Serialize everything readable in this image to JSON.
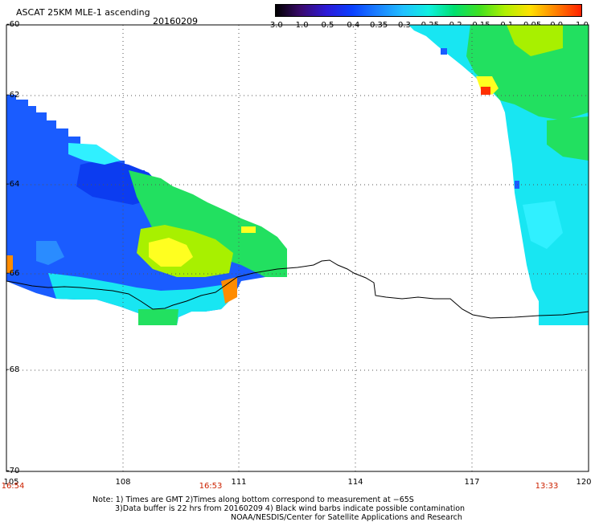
{
  "header": {
    "title": "ASCAT 25KM MLE-1 ascending",
    "date": "20160209"
  },
  "colorbar": {
    "labels": [
      "-3.0",
      "-1.0",
      "-0.5",
      "-0.4",
      "-0.35",
      "-0.3",
      "-0.25",
      "-0.2",
      "-0.15",
      "-0.1",
      "-0.05",
      "0.0",
      "1.0"
    ],
    "colors": [
      "#000000",
      "#3a0a6e",
      "#2c1ad8",
      "#0a40ff",
      "#1a80ff",
      "#20c0ff",
      "#10f0e0",
      "#00e070",
      "#40e020",
      "#b0f000",
      "#ffe000",
      "#ff8000",
      "#ff2000"
    ]
  },
  "map": {
    "lat_labels": [
      "-60",
      "-62",
      "-64",
      "-66",
      "-68",
      "-70"
    ],
    "lon_labels": [
      "105",
      "108",
      "111",
      "114",
      "117",
      "120"
    ],
    "time_labels": [
      "16:54",
      "16:53",
      "13:33"
    ],
    "colors": {
      "blue": "#1a5cff",
      "deep_blue": "#0c3cf0",
      "mid_blue": "#2a8cff",
      "cyan": "#18e6f2",
      "light_cyan": "#30f0ff",
      "green": "#22e060",
      "lime": "#a8f000",
      "yellow": "#ffff20",
      "orange": "#ff8c00",
      "red": "#ff3000",
      "coast": "#000000",
      "grid": "#555555"
    }
  },
  "notes": {
    "line1": "Note: 1) Times are GMT 2)Times along bottom correspond to measurement at −65S",
    "line2": "3)Data buffer is 22 hrs from 20160209 4) Black wind barbs indicate possible contamination",
    "line3": "NOAA/NESDIS/Center for Satellite Applications and Research"
  }
}
